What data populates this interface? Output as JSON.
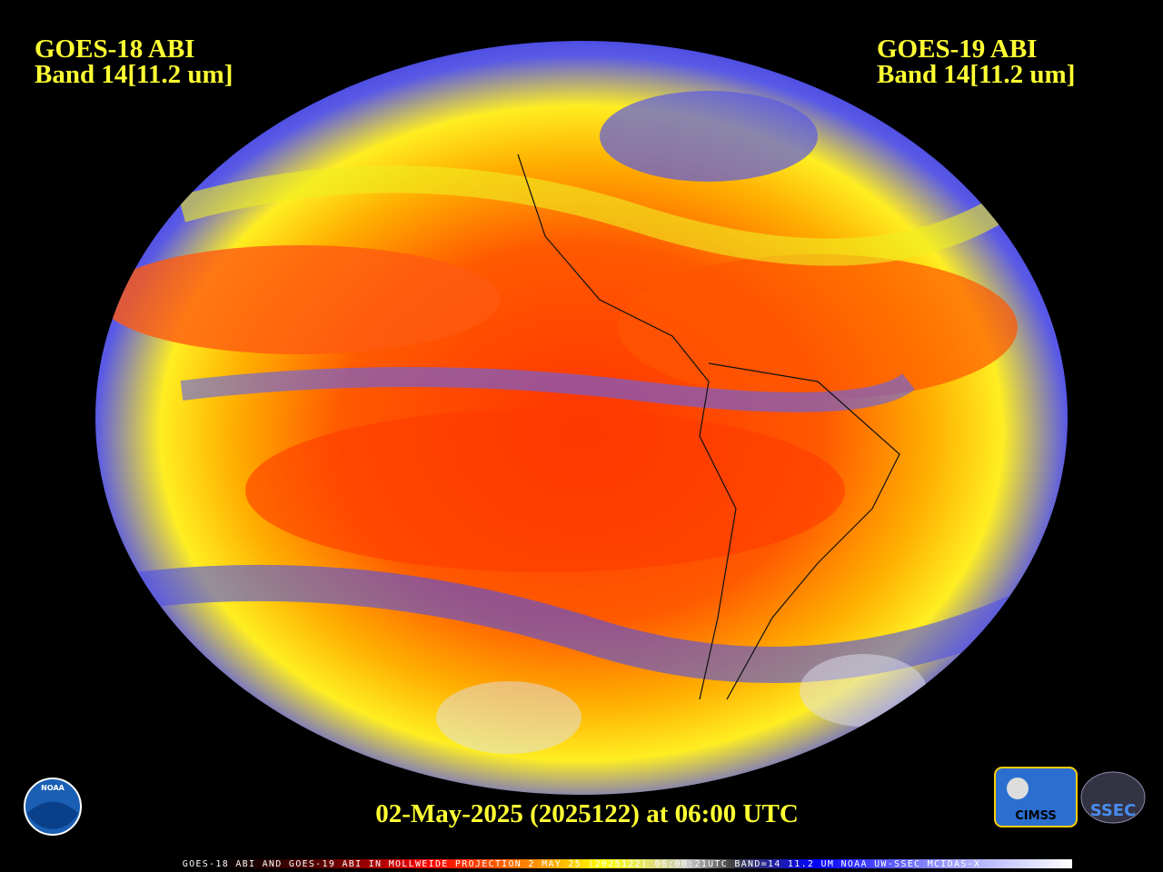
{
  "header": {
    "left": {
      "line1": "GOES-18 ABI",
      "line2": "Band 14[11.2 um]"
    },
    "right": {
      "line1": "GOES-19 ABI",
      "line2": "Band 14[11.2 um]"
    }
  },
  "timestamp": "02-May-2025 (2025122) at 06:00 UTC",
  "footer": "GOES-18 ABI AND GOES-19 ABI IN MOLLWEIDE PROJECTION 2 MAY 25 (2025122) 06:00:21UTC BAND=14 11.2 UM NOAA UW-SSEC MCIDAS-X",
  "logos": {
    "noaa": "NOAA",
    "cimss": "CIMSS",
    "ssec": "SSEC"
  }
}
